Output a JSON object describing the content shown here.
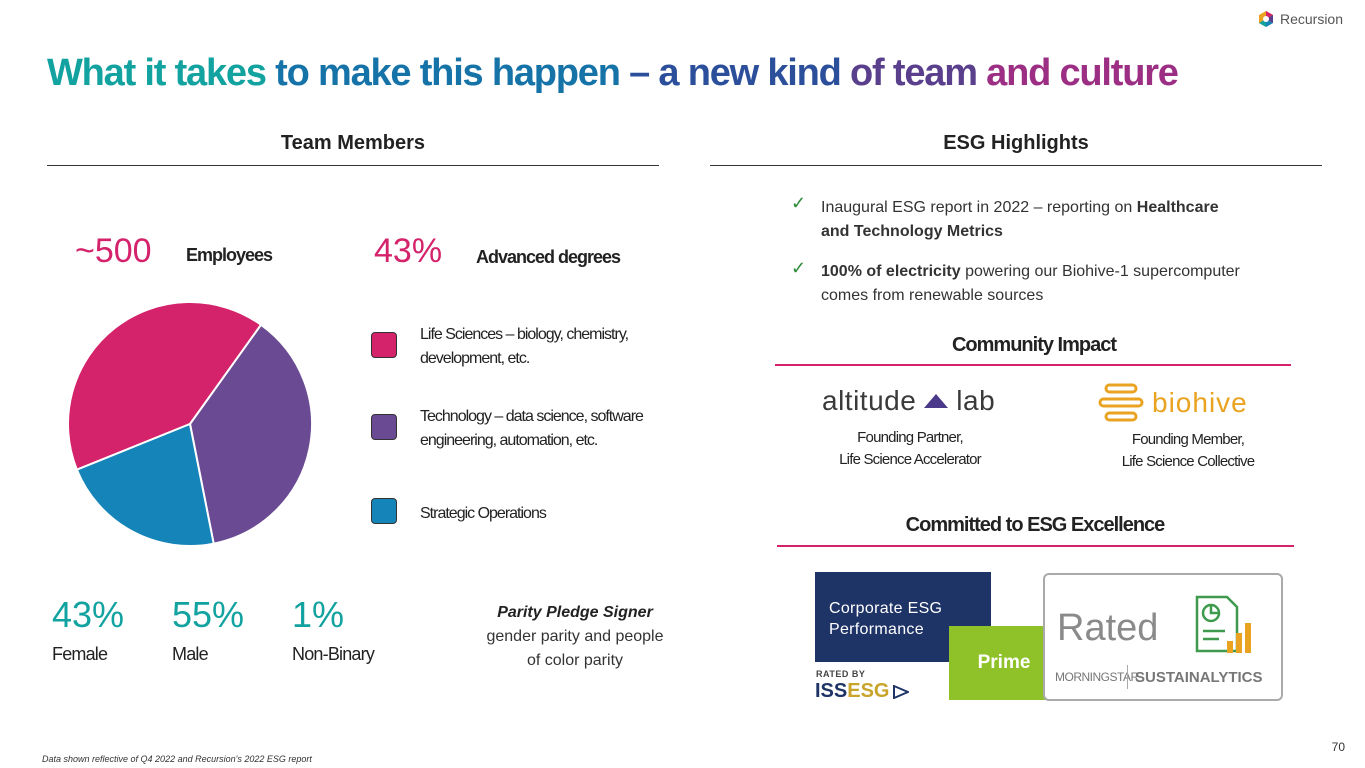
{
  "brand": {
    "name": "Recursion"
  },
  "title": {
    "part1": "What it takes",
    "part2": " to make this happen",
    "part3": " – a new kind",
    "part4": " of team",
    "part5": " and culture"
  },
  "team": {
    "heading": "Team Members",
    "employees_value": "~500",
    "employees_label": "Employees",
    "advanced_value": "43%",
    "advanced_label": "Advanced degrees",
    "legend": [
      {
        "line1": "Life Sciences – biology, chemistry,",
        "line2": "development, etc.",
        "color": "#d4226b"
      },
      {
        "line1": "Technology – data science, software",
        "line2": "engineering, automation, etc.",
        "color": "#6a4b93"
      },
      {
        "line1": "Strategic Operations",
        "line2": "",
        "color": "#1584b8"
      }
    ],
    "stats": [
      {
        "value": "43%",
        "label": "Female"
      },
      {
        "value": "55%",
        "label": "Male"
      },
      {
        "value": "1%",
        "label": "Non-Binary"
      }
    ],
    "parity_title": "Parity Pledge Signer",
    "parity_line1": "gender parity and people",
    "parity_line2": "of color parity"
  },
  "chart_data": {
    "type": "pie",
    "title": "",
    "categories": [
      "Life Sciences",
      "Technology",
      "Strategic Operations"
    ],
    "values": [
      41,
      37,
      22
    ],
    "colors": [
      "#d4226b",
      "#6a4b93",
      "#1584b8"
    ]
  },
  "esg": {
    "heading": "ESG Highlights",
    "bullet1_a": "Inaugural ESG report in 2022 – reporting on ",
    "bullet1_b": "Healthcare",
    "bullet1_c": "and Technology Metrics",
    "bullet2_a": "100% of electricity",
    "bullet2_b": " powering our Biohive-1 supercomputer",
    "bullet2_c": "comes from renewable sources",
    "check_icon": "checkmark-icon"
  },
  "community": {
    "heading": "Community Impact",
    "altitude_left": "altitude",
    "altitude_right": "lab",
    "altitude_cap1": "Founding Partner,",
    "altitude_cap2": "Life Science Accelerator",
    "biohive_name": "biohive",
    "biohive_cap1": "Founding Member,",
    "biohive_cap2": "Life Science Collective"
  },
  "committed": {
    "heading": "Committed to ESG Excellence",
    "iss_line1": "Corporate ESG",
    "iss_line2": "Performance",
    "iss_prime": "Prime",
    "iss_rated_by": "RATED BY",
    "iss_logo_a": "ISS ",
    "iss_logo_b": "ESG",
    "sust_rated": "Rated",
    "sust_morningstar": "MORNINGSTAR",
    "sust_sustainalytics": "SUSTAINALYTICS"
  },
  "footnote": "Data shown reflective of Q4 2022 and Recursion's 2022 ESG report",
  "page_number": "70"
}
